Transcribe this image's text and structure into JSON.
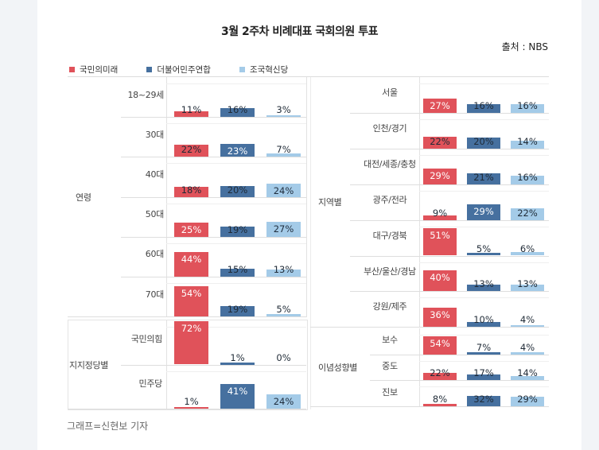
{
  "title": "3월 2주차 비례대표 국회의원 투표",
  "source": "출처 : NBS",
  "caption": "그래프=신현보 기자",
  "legend": [
    {
      "name": "국민의미래",
      "color": "#e0525a"
    },
    {
      "name": "더불어민주연합",
      "color": "#46709f"
    },
    {
      "name": "조국혁신당",
      "color": "#a4cbe8"
    }
  ],
  "chart_data": {
    "type": "bar",
    "title": "3월 2주차 비례대표 국회의원 투표",
    "unit": "%",
    "series_names": [
      "국민의미래",
      "더불어민주연합",
      "조국혁신당"
    ],
    "groups": [
      {
        "name": "연령",
        "categories": [
          {
            "label": "18~29세",
            "values": [
              11,
              16,
              3
            ]
          },
          {
            "label": "30대",
            "values": [
              22,
              23,
              7
            ]
          },
          {
            "label": "40대",
            "values": [
              18,
              20,
              24
            ]
          },
          {
            "label": "50대",
            "values": [
              25,
              19,
              27
            ]
          },
          {
            "label": "60대",
            "values": [
              44,
              15,
              13
            ]
          },
          {
            "label": "70대",
            "values": [
              54,
              19,
              5
            ]
          }
        ]
      },
      {
        "name": "지지정당별",
        "categories": [
          {
            "label": "국민의힘",
            "values": [
              72,
              1,
              0
            ]
          },
          {
            "label": "민주당",
            "values": [
              1,
              41,
              24
            ]
          }
        ]
      },
      {
        "name": "지역별",
        "categories": [
          {
            "label": "서울",
            "values": [
              27,
              16,
              16
            ]
          },
          {
            "label": "인천/경기",
            "values": [
              22,
              20,
              14
            ]
          },
          {
            "label": "대전/세종/충청",
            "values": [
              29,
              21,
              16
            ]
          },
          {
            "label": "광주/전라",
            "values": [
              9,
              29,
              22
            ]
          },
          {
            "label": "대구/경북",
            "values": [
              51,
              5,
              6
            ]
          },
          {
            "label": "부산/울산/경남",
            "values": [
              40,
              13,
              13
            ]
          },
          {
            "label": "강원/제주",
            "values": [
              36,
              10,
              4
            ]
          }
        ]
      },
      {
        "name": "이념성향별",
        "categories": [
          {
            "label": "보수",
            "values": [
              54,
              7,
              4
            ]
          },
          {
            "label": "중도",
            "values": [
              22,
              17,
              14
            ]
          },
          {
            "label": "진보",
            "values": [
              8,
              32,
              29
            ]
          }
        ]
      }
    ]
  }
}
